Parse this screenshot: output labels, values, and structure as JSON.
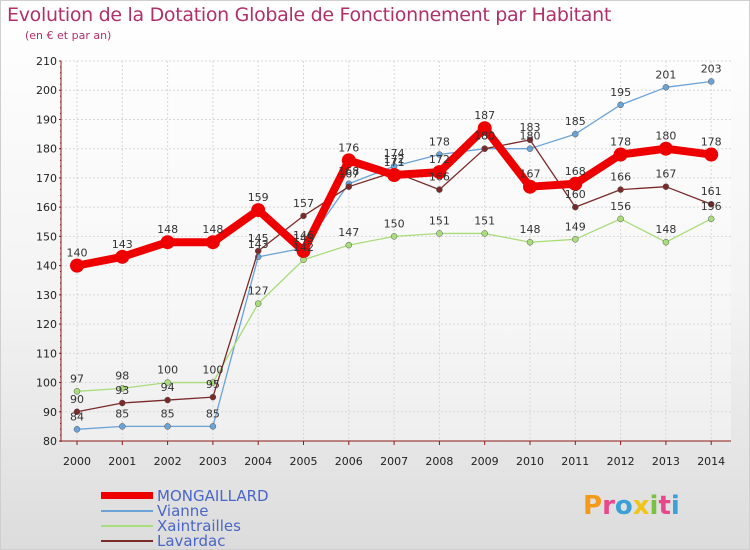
{
  "title": "Evolution de la Dotation Globale de Fonctionnement par Habitant",
  "subtitle": "(en € et par an)",
  "logo_text": "Proxiti",
  "colors": {
    "title": "#b0306a",
    "legend_text": "#4a66c7",
    "axis": "#8b1a1a",
    "grid": "#d8d8d8"
  },
  "chart_data": {
    "type": "line",
    "title": "Evolution de la Dotation Globale de Fonctionnement par Habitant",
    "ylabel": "(en € et par an)",
    "xlabel": "",
    "x": [
      "2000",
      "2001",
      "2002",
      "2003",
      "2004",
      "2005",
      "2006",
      "2007",
      "2008",
      "2009",
      "2010",
      "2011",
      "2012",
      "2013",
      "2014"
    ],
    "ylim": [
      80,
      210
    ],
    "yticks": [
      80,
      90,
      100,
      110,
      120,
      130,
      140,
      150,
      160,
      170,
      180,
      190,
      200,
      210
    ],
    "grid": true,
    "legend": "bottom-left",
    "series": [
      {
        "name": "MONGAILLARD",
        "color": "#ee0000",
        "values": [
          140,
          143,
          148,
          148,
          159,
          145,
          176,
          171,
          172,
          187,
          167,
          168,
          178,
          180,
          178
        ]
      },
      {
        "name": "Vianne",
        "color": "#6ba3d6",
        "values": [
          84,
          85,
          85,
          85,
          143,
          146,
          168,
          174,
          178,
          180,
          180,
          185,
          195,
          201,
          203
        ]
      },
      {
        "name": "Xaintrailles",
        "color": "#a9dc7a",
        "values": [
          97,
          98,
          100,
          100,
          127,
          142,
          147,
          150,
          151,
          151,
          148,
          149,
          156,
          148,
          156
        ]
      },
      {
        "name": "Lavardac",
        "color": "#7b2a2a",
        "values": [
          90,
          93,
          94,
          95,
          145,
          157,
          167,
          172,
          166,
          180,
          183,
          160,
          166,
          167,
          161
        ]
      }
    ]
  }
}
